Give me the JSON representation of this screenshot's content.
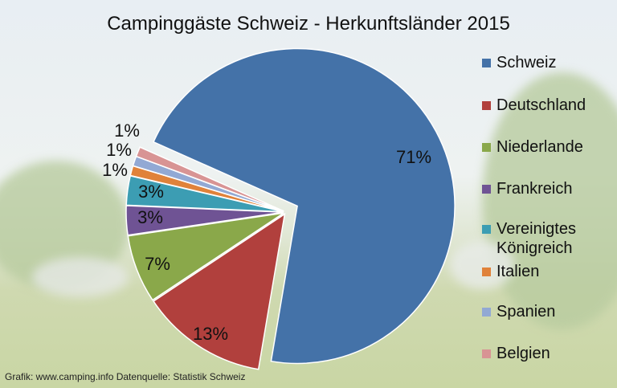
{
  "chart_data": {
    "type": "pie",
    "title": "Campinggäste Schweiz - Herkunftsländer 2015",
    "categories": [
      "Schweiz",
      "Deutschland",
      "Niederlande",
      "Frankreich",
      "Vereinigtes Königreich",
      "Italien",
      "Spanien",
      "Belgien"
    ],
    "values": [
      71,
      13,
      7,
      3,
      3,
      1,
      1,
      1
    ],
    "data_labels": [
      "71%",
      "13%",
      "7%",
      "3%",
      "3%",
      "1%",
      "1%",
      "1%"
    ],
    "colors": [
      "#4472a8",
      "#b1403d",
      "#8aa84a",
      "#6f5394",
      "#3c9db3",
      "#e0823a",
      "#92a9d4",
      "#d89494"
    ],
    "legend_placement": "right",
    "exploded": "Schweiz"
  },
  "footer": "Grafik: www.camping.info  Datenquelle: Statistik Schweiz"
}
